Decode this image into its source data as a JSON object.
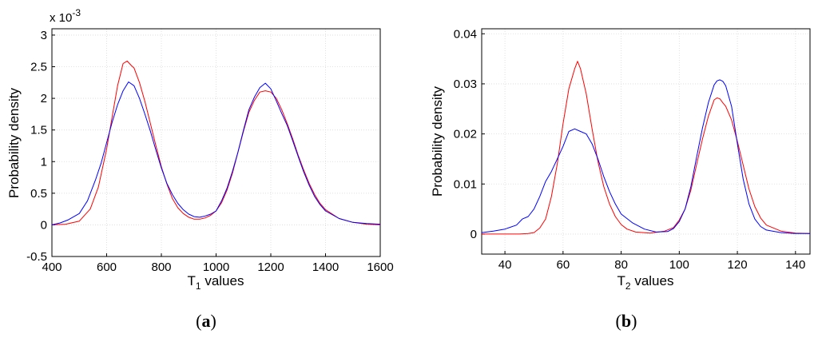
{
  "colors": {
    "series_red": "#ff0000",
    "series_blue": "#0000ff"
  },
  "chart_data": [
    {
      "type": "line",
      "caption_open": "(",
      "caption_letter": "a",
      "caption_close": ")",
      "ylabel": "Probability density",
      "xlabel_main": "T",
      "xlabel_sub": "1",
      "xlabel_rest": " values",
      "y_multiplier_base": "x 10",
      "y_multiplier_exp": "-3",
      "xlim": [
        400,
        1600
      ],
      "ylim": [
        -0.5,
        3.1
      ],
      "grid": true,
      "x_ticks": [
        400,
        600,
        800,
        1000,
        1200,
        1400,
        1600
      ],
      "x_tick_labels": [
        "400",
        "600",
        "800",
        "1000",
        "1200",
        "1400",
        "1600"
      ],
      "y_ticks": [
        -0.5,
        0,
        0.5,
        1,
        1.5,
        2,
        2.5,
        3
      ],
      "y_tick_labels": [
        "-0.5",
        "0",
        "0.5",
        "1",
        "1.5",
        "2",
        "2.5",
        "3"
      ],
      "series": [
        {
          "color": "#ff0000",
          "x": [
            400,
            450,
            500,
            540,
            570,
            600,
            620,
            640,
            660,
            675,
            690,
            700,
            720,
            740,
            760,
            780,
            800,
            820,
            840,
            860,
            880,
            900,
            920,
            940,
            960,
            980,
            1000,
            1020,
            1040,
            1060,
            1080,
            1100,
            1120,
            1140,
            1160,
            1180,
            1200,
            1220,
            1240,
            1260,
            1280,
            1300,
            1320,
            1340,
            1360,
            1380,
            1400,
            1450,
            1500,
            1550,
            1600
          ],
          "y": [
            0,
            0.01,
            0.06,
            0.25,
            0.6,
            1.2,
            1.7,
            2.2,
            2.55,
            2.59,
            2.52,
            2.48,
            2.25,
            1.95,
            1.6,
            1.25,
            0.92,
            0.65,
            0.42,
            0.27,
            0.18,
            0.12,
            0.09,
            0.09,
            0.11,
            0.15,
            0.22,
            0.35,
            0.55,
            0.82,
            1.15,
            1.48,
            1.78,
            1.97,
            2.1,
            2.12,
            2.1,
            2.0,
            1.82,
            1.6,
            1.36,
            1.1,
            0.87,
            0.66,
            0.48,
            0.34,
            0.24,
            0.1,
            0.04,
            0.01,
            0
          ]
        },
        {
          "color": "#0000ff",
          "x": [
            400,
            430,
            460,
            500,
            530,
            560,
            580,
            600,
            620,
            640,
            660,
            680,
            700,
            720,
            740,
            760,
            780,
            800,
            820,
            840,
            860,
            880,
            900,
            920,
            940,
            960,
            980,
            1000,
            1020,
            1040,
            1060,
            1080,
            1100,
            1120,
            1140,
            1160,
            1180,
            1200,
            1220,
            1240,
            1260,
            1280,
            1300,
            1320,
            1340,
            1360,
            1380,
            1400,
            1450,
            1500,
            1550,
            1600
          ],
          "y": [
            0,
            0.03,
            0.08,
            0.18,
            0.38,
            0.72,
            0.98,
            1.3,
            1.62,
            1.9,
            2.12,
            2.26,
            2.2,
            2.0,
            1.75,
            1.48,
            1.18,
            0.9,
            0.66,
            0.48,
            0.34,
            0.24,
            0.17,
            0.13,
            0.12,
            0.14,
            0.17,
            0.22,
            0.38,
            0.58,
            0.85,
            1.15,
            1.5,
            1.82,
            2.02,
            2.17,
            2.24,
            2.15,
            1.96,
            1.76,
            1.57,
            1.33,
            1.08,
            0.84,
            0.63,
            0.45,
            0.32,
            0.22,
            0.1,
            0.04,
            0.02,
            0.01
          ]
        }
      ]
    },
    {
      "type": "line",
      "caption_open": "(",
      "caption_letter": "b",
      "caption_close": ")",
      "ylabel": "Probability density",
      "xlabel_main": "T",
      "xlabel_sub": "2",
      "xlabel_rest": " values",
      "xlim": [
        32,
        145
      ],
      "ylim": [
        -0.004,
        0.041
      ],
      "grid": true,
      "x_ticks": [
        40,
        60,
        80,
        100,
        120,
        140
      ],
      "x_tick_labels": [
        "40",
        "60",
        "80",
        "100",
        "120",
        "140"
      ],
      "y_ticks": [
        0,
        0.01,
        0.02,
        0.03,
        0.04
      ],
      "y_tick_labels": [
        "0",
        "0.01",
        "0.02",
        "0.03",
        "0.04"
      ],
      "series": [
        {
          "color": "#ff0000",
          "x": [
            32,
            40,
            45,
            48,
            50,
            52,
            54,
            56,
            58,
            60,
            62,
            64,
            65,
            66,
            68,
            70,
            72,
            74,
            76,
            78,
            80,
            82,
            85,
            90,
            95,
            98,
            100,
            102,
            104,
            106,
            108,
            110,
            112,
            113,
            114,
            115,
            116,
            118,
            120,
            122,
            124,
            126,
            128,
            130,
            135,
            140,
            145
          ],
          "y": [
            0,
            0,
            0,
            0.0001,
            0.0003,
            0.0012,
            0.003,
            0.0075,
            0.014,
            0.022,
            0.029,
            0.033,
            0.0345,
            0.033,
            0.028,
            0.021,
            0.0145,
            0.0095,
            0.006,
            0.0035,
            0.0019,
            0.001,
            0.0004,
            0.0002,
            0.0006,
            0.0013,
            0.0028,
            0.005,
            0.0088,
            0.014,
            0.019,
            0.0235,
            0.0268,
            0.0272,
            0.027,
            0.0262,
            0.0255,
            0.0228,
            0.0185,
            0.0138,
            0.009,
            0.0055,
            0.0032,
            0.0018,
            0.0006,
            0.0002,
            0.0001
          ]
        },
        {
          "color": "#0000ff",
          "x": [
            32,
            36,
            40,
            44,
            46,
            48,
            50,
            52,
            54,
            56,
            58,
            60,
            62,
            64,
            66,
            68,
            70,
            72,
            74,
            76,
            78,
            80,
            84,
            88,
            92,
            96,
            98,
            100,
            102,
            104,
            106,
            108,
            110,
            112,
            113,
            114,
            115,
            116,
            118,
            120,
            122,
            124,
            126,
            128,
            130,
            135,
            140,
            145
          ],
          "y": [
            0.0003,
            0.0006,
            0.001,
            0.0018,
            0.003,
            0.0035,
            0.005,
            0.0075,
            0.0105,
            0.0125,
            0.015,
            0.0175,
            0.0205,
            0.021,
            0.0205,
            0.02,
            0.018,
            0.015,
            0.0115,
            0.0085,
            0.006,
            0.004,
            0.0022,
            0.001,
            0.0004,
            0.0005,
            0.0011,
            0.0025,
            0.005,
            0.0095,
            0.0155,
            0.0212,
            0.0262,
            0.0298,
            0.0306,
            0.0308,
            0.0305,
            0.0296,
            0.0255,
            0.018,
            0.011,
            0.006,
            0.003,
            0.0015,
            0.0008,
            0.0003,
            0.0001,
            0.0001
          ]
        }
      ]
    }
  ]
}
